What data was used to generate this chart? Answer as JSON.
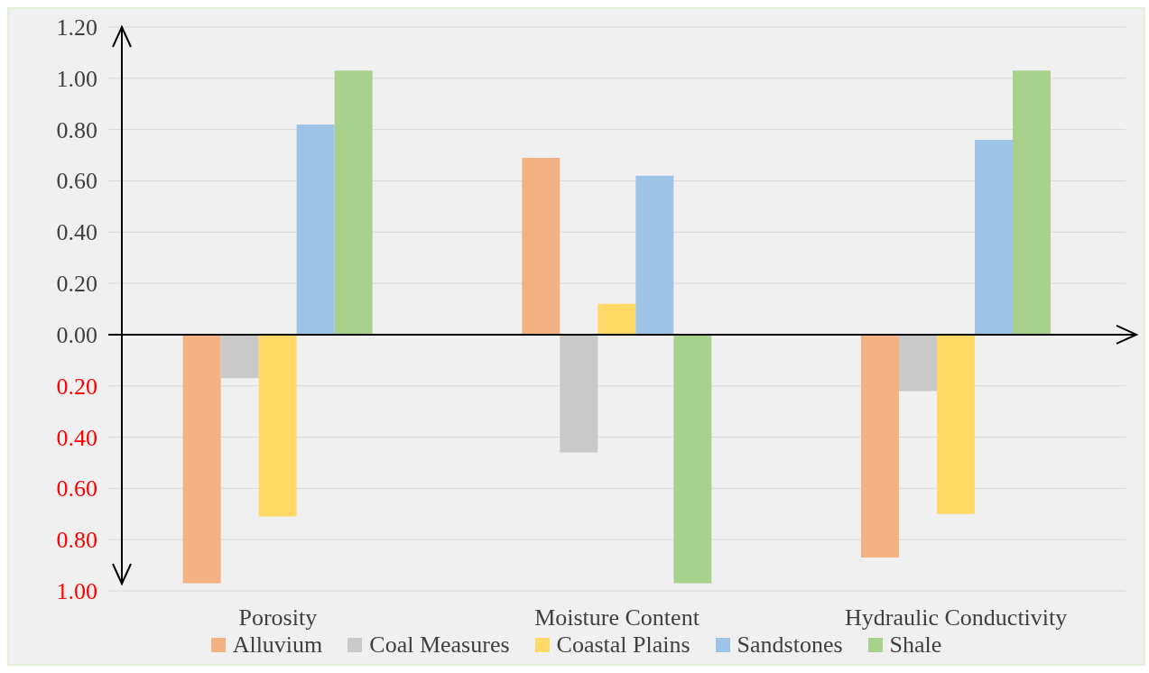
{
  "chart_data": {
    "type": "bar",
    "categories": [
      "Porosity",
      "Moisture Content",
      "Hydraulic Conductivity"
    ],
    "series": [
      {
        "name": "Alluvium",
        "color": "#f4b183",
        "values": [
          -0.97,
          0.69,
          -0.87
        ]
      },
      {
        "name": "Coal Measures",
        "color": "#c9c9c9",
        "values": [
          -0.17,
          -0.46,
          -0.22
        ]
      },
      {
        "name": "Coastal Plains",
        "color": "#ffd966",
        "values": [
          -0.71,
          0.12,
          -0.7
        ]
      },
      {
        "name": "Sandstones",
        "color": "#9dc3e6",
        "values": [
          0.82,
          0.62,
          0.76
        ]
      },
      {
        "name": "Shale",
        "color": "#a9d18e",
        "values": [
          1.03,
          -0.97,
          1.03
        ]
      }
    ],
    "ylim": [
      -1,
      1.2
    ],
    "yticks": [
      {
        "value": -1,
        "label": "1.00"
      },
      {
        "value": -0.8,
        "label": "0.80"
      },
      {
        "value": -0.6,
        "label": "0.60"
      },
      {
        "value": -0.4,
        "label": "0.40"
      },
      {
        "value": -0.2,
        "label": "0.20"
      },
      {
        "value": 0,
        "label": "0.00"
      },
      {
        "value": 0.2,
        "label": "0.20"
      },
      {
        "value": 0.4,
        "label": "0.40"
      },
      {
        "value": 0.6,
        "label": "0.60"
      },
      {
        "value": 0.8,
        "label": "0.80"
      },
      {
        "value": 1,
        "label": "1.00"
      },
      {
        "value": 1.2,
        "label": "1.20"
      }
    ],
    "grid": "y",
    "legend": "bottom"
  }
}
